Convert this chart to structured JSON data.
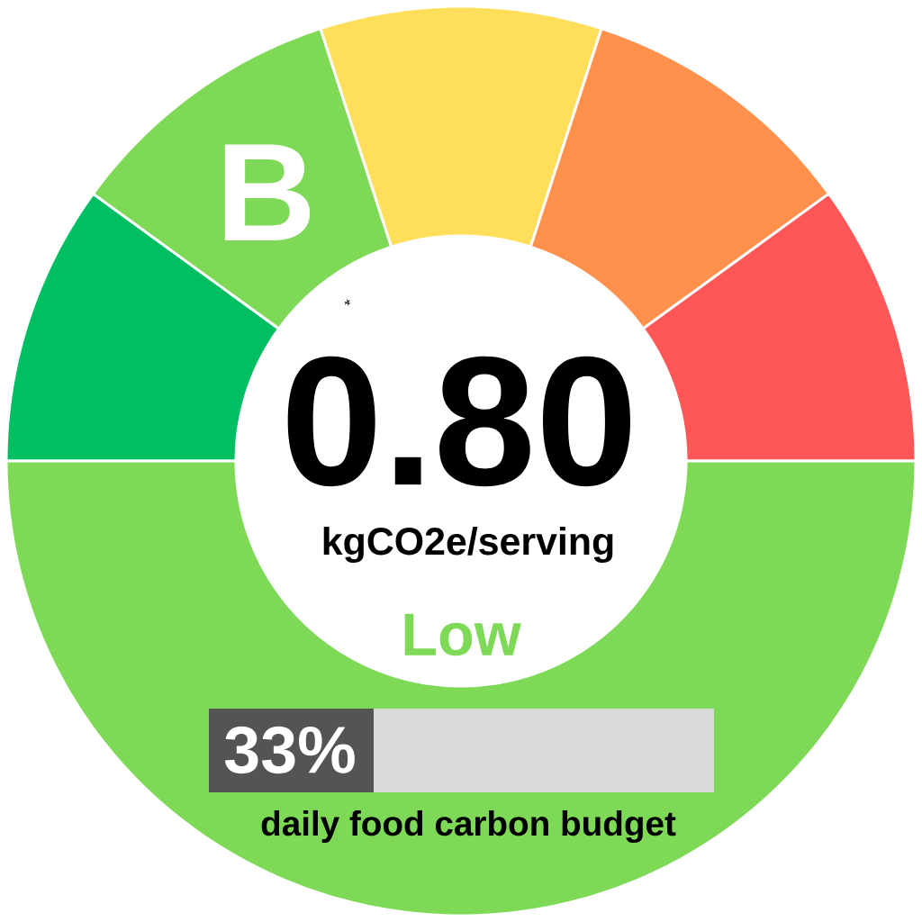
{
  "chart_data": {
    "type": "donut",
    "categories": [
      null,
      "B",
      null,
      null,
      null,
      null
    ],
    "values": [
      10,
      10,
      10,
      10,
      10,
      50
    ],
    "colors": [
      "#00bf63",
      "#7ed957",
      "#ffde59",
      "#ff914d",
      "#ff5757",
      "#7ed957"
    ],
    "annotations": [
      "0.80",
      "kgCO2e/serving",
      "Low",
      "33%",
      "daily food carbon budget"
    ]
  }
}
